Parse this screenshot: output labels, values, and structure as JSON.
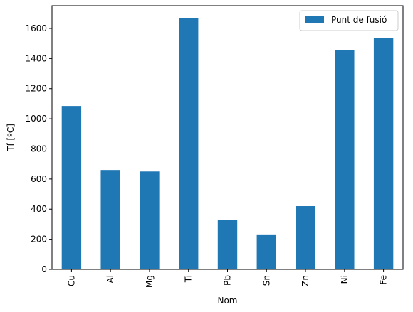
{
  "chart_data": {
    "type": "bar",
    "categories": [
      "Cu",
      "Al",
      "Mg",
      "Ti",
      "Pb",
      "Sn",
      "Zn",
      "Ni",
      "Fe"
    ],
    "series": [
      {
        "name": "Punt de fusió",
        "values": [
          1085,
          660,
          650,
          1668,
          327,
          232,
          420,
          1455,
          1538
        ],
        "color": "#1f77b4"
      }
    ],
    "xlabel": "Nom",
    "ylabel": "Tf  [ºC]",
    "ylim": [
      0,
      1751
    ],
    "yticks": [
      0,
      200,
      400,
      600,
      800,
      1000,
      1200,
      1400,
      1600
    ],
    "legend_position": "top-right",
    "grid": false
  }
}
